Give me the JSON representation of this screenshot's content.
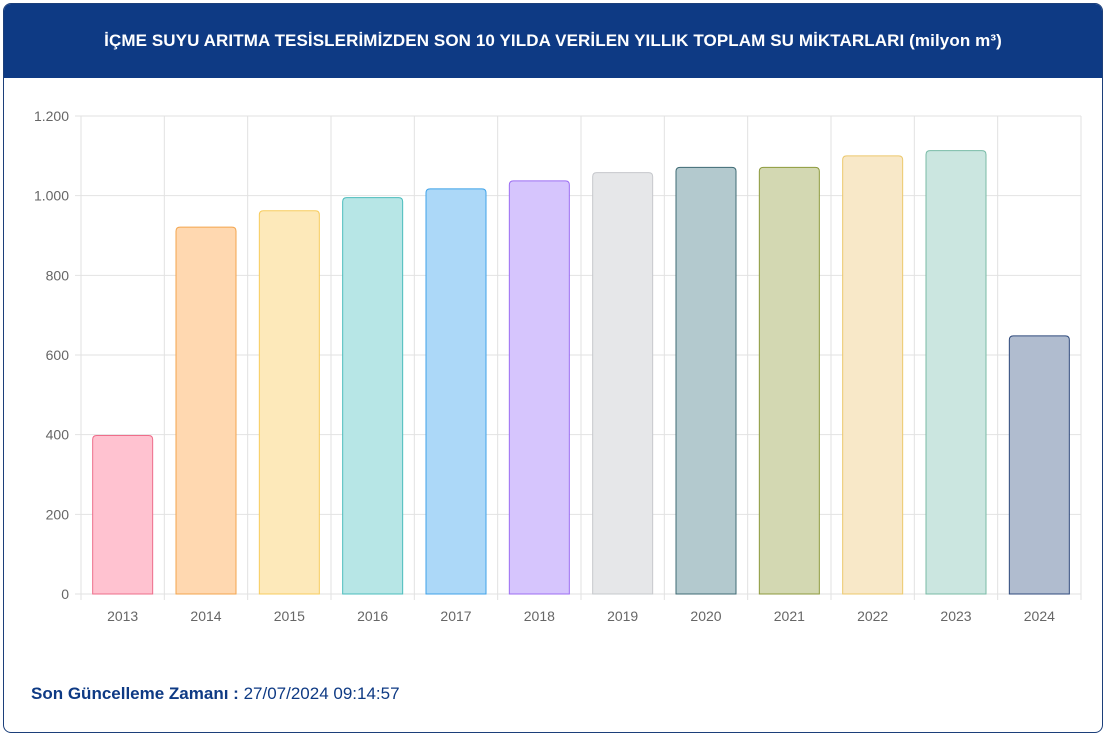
{
  "header": {
    "title": "İÇME SUYU ARITMA TESİSLERİMİZDEN SON 10 YILDA VERİLEN YILLIK TOPLAM SU MİKTARLARI (milyon m³)"
  },
  "footer": {
    "label": "Son Güncelleme Zamanı :",
    "value": "27/07/2024 09:14:57"
  },
  "chart_data": {
    "type": "bar",
    "title": "İÇME SUYU ARITMA TESİSLERİMİZDEN SON 10 YILDA VERİLEN YILLIK TOPLAM SU MİKTARLARI (milyon m³)",
    "xlabel": "",
    "ylabel": "",
    "ylim": [
      0,
      1200
    ],
    "yticks": [
      0,
      200,
      400,
      600,
      800,
      1000,
      1200
    ],
    "ytick_labels": [
      "0",
      "200",
      "400",
      "600",
      "800",
      "1.000",
      "1.200"
    ],
    "grid": true,
    "categories": [
      "2013",
      "2014",
      "2015",
      "2016",
      "2017",
      "2018",
      "2019",
      "2020",
      "2021",
      "2022",
      "2023",
      "2024"
    ],
    "values": [
      398,
      921,
      962,
      995,
      1017,
      1037,
      1058,
      1071,
      1071,
      1100,
      1113,
      648
    ],
    "fill_colors": [
      "#ffc2d0",
      "#ffd8b0",
      "#fde9ba",
      "#b7e6e6",
      "#acd8f8",
      "#d6c5fd",
      "#e6e7e9",
      "#b3c9ce",
      "#d3d8b2",
      "#f8e8c8",
      "#cbe6e0",
      "#b0bccf"
    ],
    "border_colors": [
      "#ee6d8a",
      "#f3a54e",
      "#f7cc5d",
      "#4bbcbc",
      "#3fa2e8",
      "#9c6df2",
      "#c6c8cc",
      "#3f6b74",
      "#8d9a3c",
      "#ecc86c",
      "#78bba6",
      "#2f4a7c"
    ]
  }
}
